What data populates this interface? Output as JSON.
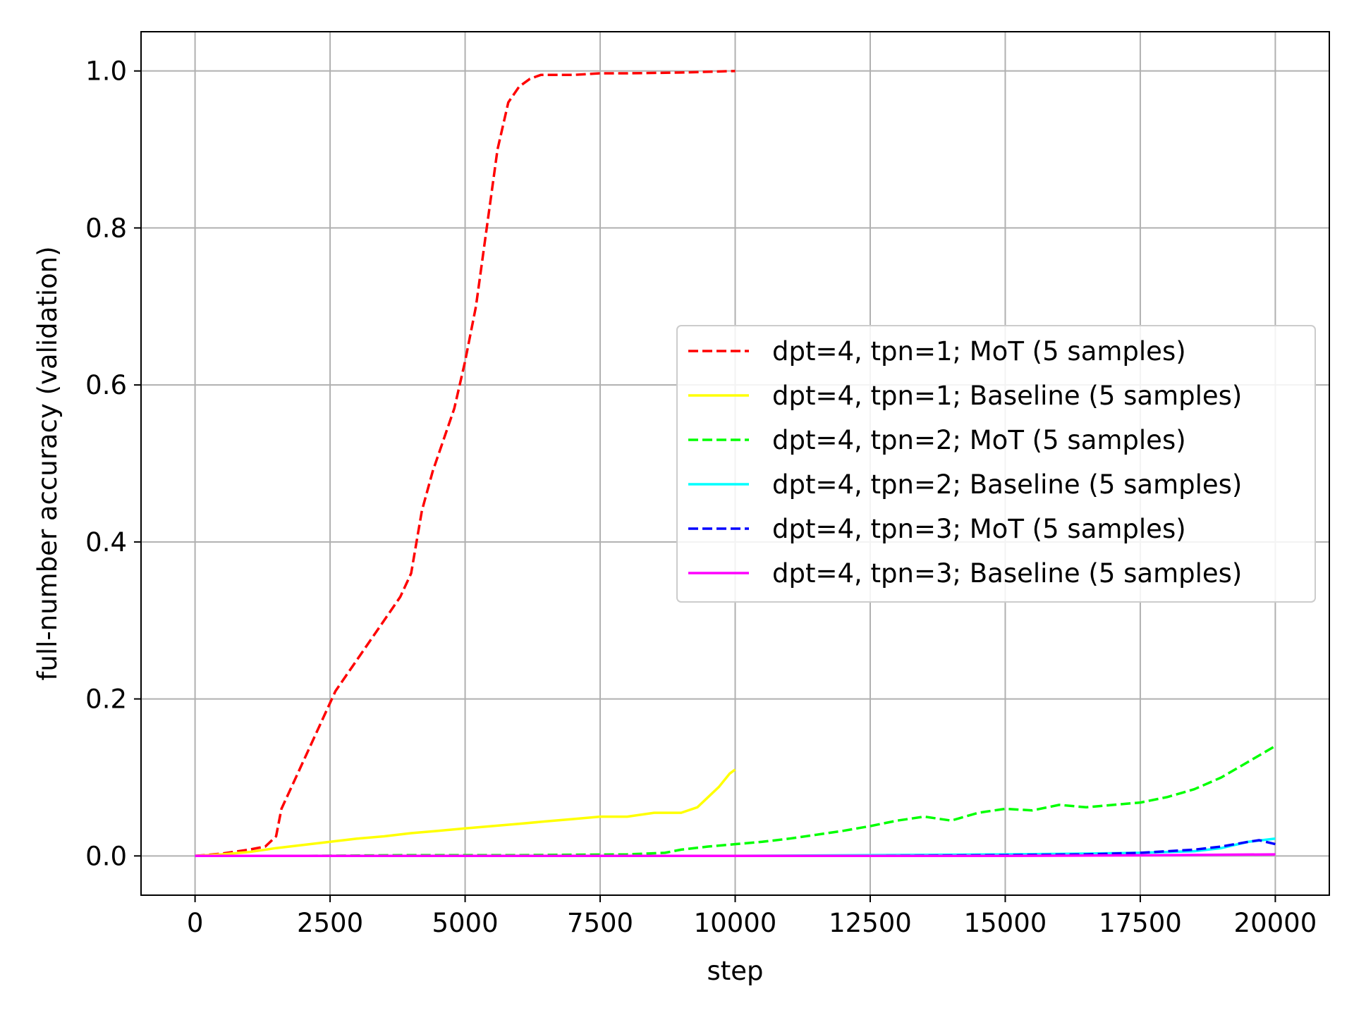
{
  "chart_data": {
    "type": "line",
    "title": "",
    "xlabel": "step",
    "ylabel": "full-number accuracy (validation)",
    "xlim": [
      -1000,
      21000
    ],
    "ylim": [
      -0.05,
      1.05
    ],
    "xticks": [
      0,
      2500,
      5000,
      7500,
      10000,
      12500,
      15000,
      17500,
      20000
    ],
    "yticks": [
      0.0,
      0.2,
      0.4,
      0.6,
      0.8,
      1.0
    ],
    "xtick_labels": [
      "0",
      "2500",
      "5000",
      "7500",
      "10000",
      "12500",
      "15000",
      "17500",
      "20000"
    ],
    "ytick_labels": [
      "0.0",
      "0.2",
      "0.4",
      "0.6",
      "0.8",
      "1.0"
    ],
    "grid": true,
    "legend_position": "center-right",
    "series": [
      {
        "name": "dpt=4, tpn=1; MoT (5 samples)",
        "color": "#ff0000",
        "dashed": true,
        "x": [
          0,
          500,
          1000,
          1300,
          1500,
          1600,
          1800,
          2000,
          2200,
          2400,
          2600,
          2800,
          3000,
          3200,
          3400,
          3600,
          3800,
          4000,
          4200,
          4400,
          4600,
          4800,
          5000,
          5200,
          5400,
          5600,
          5800,
          6000,
          6200,
          6400,
          6600,
          7000,
          7500,
          8000,
          9000,
          10000
        ],
        "y": [
          0.0,
          0.003,
          0.008,
          0.012,
          0.025,
          0.06,
          0.09,
          0.12,
          0.15,
          0.18,
          0.21,
          0.23,
          0.25,
          0.27,
          0.29,
          0.31,
          0.33,
          0.36,
          0.44,
          0.49,
          0.53,
          0.57,
          0.63,
          0.7,
          0.8,
          0.9,
          0.96,
          0.98,
          0.99,
          0.995,
          0.995,
          0.995,
          0.997,
          0.997,
          0.998,
          1.0
        ]
      },
      {
        "name": "dpt=4, tpn=1; Baseline (5 samples)",
        "color": "#ffff00",
        "dashed": false,
        "x": [
          0,
          500,
          1000,
          1500,
          2000,
          2500,
          3000,
          3500,
          4000,
          4500,
          5000,
          5500,
          6000,
          6500,
          7000,
          7500,
          8000,
          8500,
          9000,
          9300,
          9500,
          9700,
          9900,
          10000
        ],
        "y": [
          0.0,
          0.002,
          0.005,
          0.01,
          0.014,
          0.018,
          0.022,
          0.025,
          0.029,
          0.032,
          0.035,
          0.038,
          0.041,
          0.044,
          0.047,
          0.05,
          0.05,
          0.055,
          0.055,
          0.062,
          0.075,
          0.088,
          0.105,
          0.11
        ]
      },
      {
        "name": "dpt=4, tpn=2; MoT (5 samples)",
        "color": "#00ff00",
        "dashed": true,
        "x": [
          0,
          2000,
          4000,
          6000,
          8000,
          8700,
          9000,
          9500,
          10000,
          10500,
          11000,
          11500,
          12000,
          12500,
          13000,
          13500,
          14000,
          14500,
          15000,
          15500,
          16000,
          16500,
          17000,
          17500,
          18000,
          18500,
          19000,
          19500,
          20000
        ],
        "y": [
          0.0,
          0.0,
          0.001,
          0.001,
          0.002,
          0.004,
          0.008,
          0.012,
          0.015,
          0.018,
          0.022,
          0.027,
          0.032,
          0.038,
          0.045,
          0.05,
          0.045,
          0.055,
          0.06,
          0.058,
          0.065,
          0.062,
          0.065,
          0.068,
          0.075,
          0.085,
          0.1,
          0.12,
          0.14
        ]
      },
      {
        "name": "dpt=4, tpn=2; Baseline (5 samples)",
        "color": "#00ffff",
        "dashed": false,
        "x": [
          0,
          5000,
          10000,
          12500,
          15000,
          16500,
          17500,
          18500,
          19000,
          19500,
          20000
        ],
        "y": [
          0.0,
          0.0,
          0.0,
          0.001,
          0.002,
          0.003,
          0.004,
          0.006,
          0.01,
          0.018,
          0.022
        ]
      },
      {
        "name": "dpt=4, tpn=3; MoT (5 samples)",
        "color": "#0000ff",
        "dashed": true,
        "x": [
          0,
          5000,
          10000,
          12500,
          15000,
          16500,
          17500,
          18500,
          19000,
          19500,
          19700,
          20000
        ],
        "y": [
          0.0,
          0.0,
          0.0,
          0.0,
          0.001,
          0.002,
          0.004,
          0.008,
          0.012,
          0.018,
          0.02,
          0.015
        ]
      },
      {
        "name": "dpt=4, tpn=3; Baseline (5 samples)",
        "color": "#ff00ff",
        "dashed": false,
        "x": [
          0,
          5000,
          10000,
          15000,
          18000,
          20000
        ],
        "y": [
          0.0,
          0.0,
          0.0,
          0.0,
          0.001,
          0.002
        ]
      }
    ]
  }
}
